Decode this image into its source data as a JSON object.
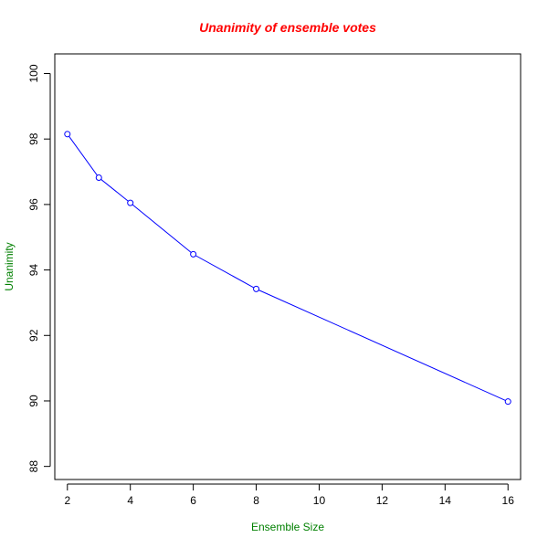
{
  "chart_data": {
    "type": "line",
    "title": "Unanimity of ensemble votes",
    "xlabel": "Ensemble Size",
    "ylabel": "Unanimity",
    "x": [
      2,
      3,
      4,
      6,
      8,
      16
    ],
    "series": [
      {
        "values": [
          98.15,
          96.82,
          96.05,
          94.48,
          93.42,
          89.98
        ]
      }
    ],
    "xlim": [
      1.6,
      16.4
    ],
    "ylim": [
      87.6,
      100.6
    ],
    "xticks": [
      "2",
      "4",
      "6",
      "8",
      "10",
      "12",
      "14",
      "16"
    ],
    "yticks": [
      "88",
      "90",
      "92",
      "94",
      "96",
      "98",
      "100"
    ],
    "grid": false,
    "markers": "open-circle"
  },
  "colors": {
    "title": "#ff0000",
    "axis_labels": "#008000",
    "series_line": "#0000ff",
    "axes": "#000000"
  }
}
